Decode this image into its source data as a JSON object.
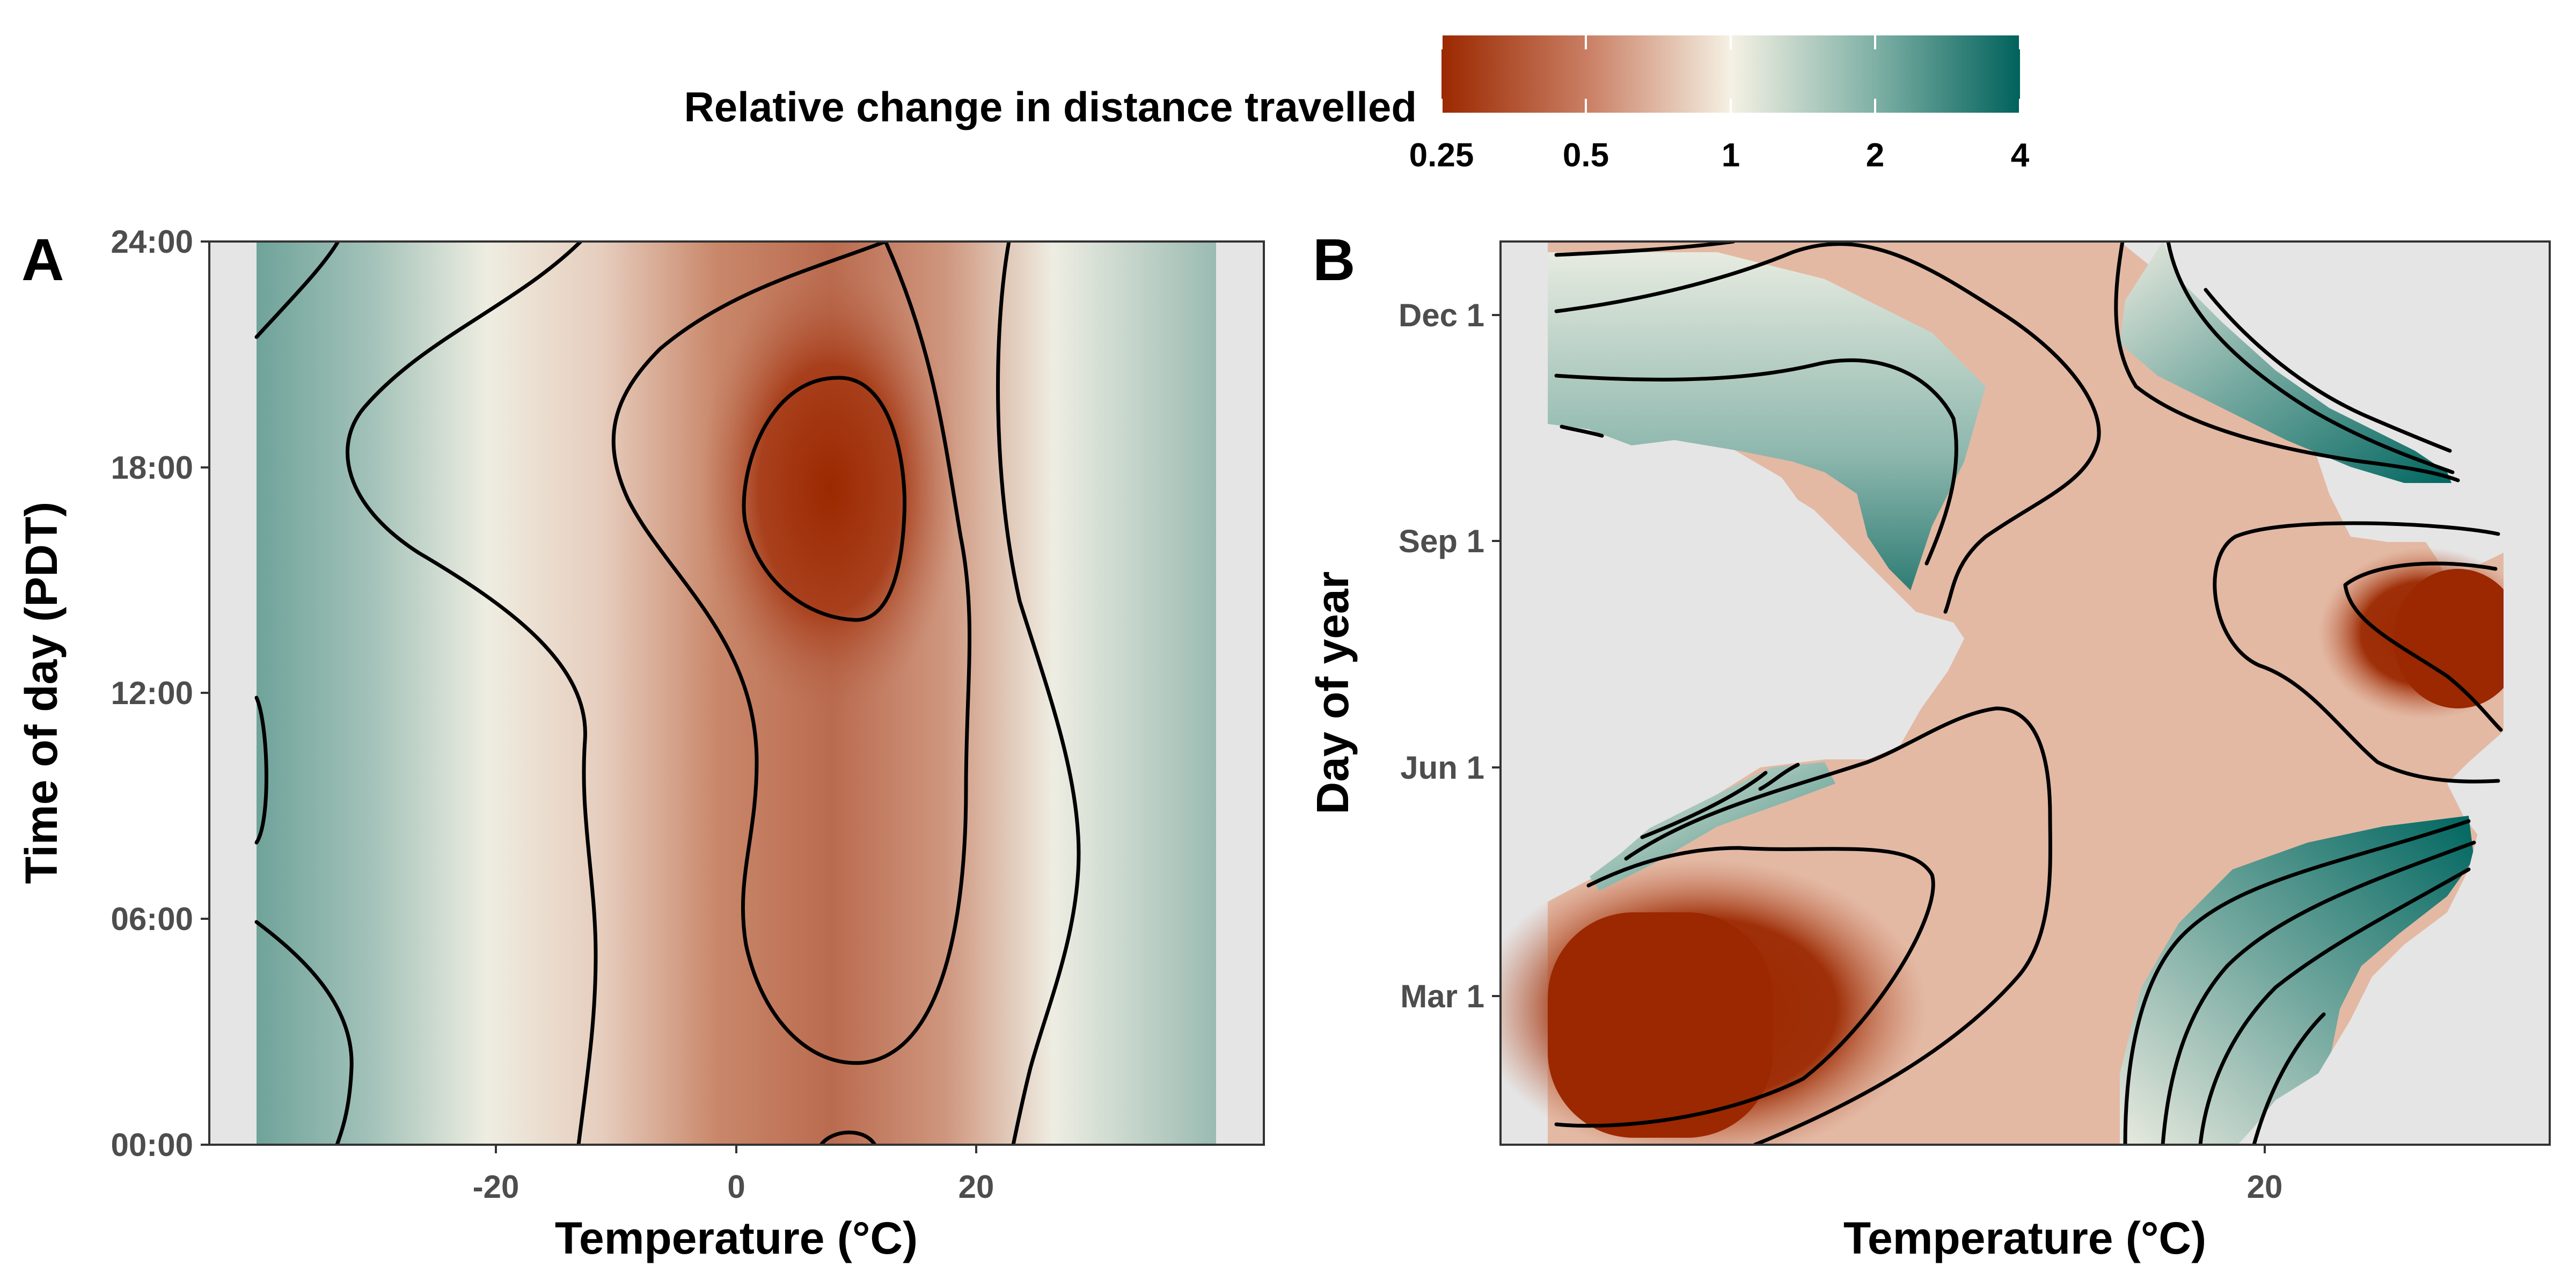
{
  "legend": {
    "title": "Relative change in distance travelled",
    "labels": [
      "0.25",
      "0.5",
      "1",
      "2",
      "4"
    ],
    "values": [
      0.25,
      0.5,
      1,
      2,
      4
    ],
    "scale": "log2",
    "colors": {
      "low": "#9b2800",
      "mid": "#f5f1e4",
      "high": "#00625c",
      "na": "#e5e5e5"
    }
  },
  "panels": [
    {
      "tag": "A",
      "xlabel": "Temperature (°C)",
      "ylabel": "Time of day (PDT)",
      "xticks": [
        "-20",
        "0",
        "20"
      ],
      "yticks": [
        "00:00",
        "06:00",
        "12:00",
        "18:00",
        "24:00"
      ]
    },
    {
      "tag": "B",
      "xlabel": "Temperature (°C)",
      "ylabel": "Day of year",
      "xticks": [
        "20"
      ],
      "yticks": [
        "Mar 1",
        "Jun 1",
        "Sep 1",
        "Dec 1"
      ]
    }
  ],
  "chart_data": [
    {
      "type": "heatmap",
      "title": "",
      "xlabel": "Temperature (°C)",
      "ylabel": "Time of day (PDT)",
      "xlim": [
        -44,
        44
      ],
      "ylim": [
        "00:00",
        "24:00"
      ],
      "data_range_x": [
        -40,
        40
      ],
      "color_scale": {
        "type": "log2",
        "limits": [
          0.25,
          4
        ],
        "low": "#9b2800",
        "mid": "#f5f1e4",
        "high": "#00625c"
      },
      "contours": true,
      "peak_decrease": {
        "temperature": 8,
        "time": "17:30",
        "value": 0.3
      },
      "approx_values_by_temperature": {
        "x": [
          -40,
          -30,
          -20,
          -10,
          0,
          10,
          20,
          30,
          40
        ],
        "value": [
          2.0,
          1.5,
          1.1,
          0.9,
          0.6,
          0.45,
          0.6,
          1.3,
          1.6
        ]
      }
    },
    {
      "type": "heatmap",
      "title": "",
      "xlabel": "Temperature (°C)",
      "ylabel": "Day of year",
      "xlim": [
        -44,
        44
      ],
      "ylim": [
        "Jan 1",
        "Dec 31"
      ],
      "data_range_x": [
        -40,
        40
      ],
      "color_scale": {
        "type": "log2",
        "limits": [
          0.25,
          4
        ],
        "low": "#9b2800",
        "mid": "#f5f1e4",
        "high": "#00625c"
      },
      "contours": true,
      "regions": [
        {
          "season": "winter (Jan–Apr)",
          "temperature": "cold (-40 to -15)",
          "value": 0.25
        },
        {
          "season": "late Jul–Aug",
          "temperature": "hot (30 to 40)",
          "value": 0.25
        },
        {
          "season": "Sep–Dec",
          "temperature": "cold (-40 to -10)",
          "value": 2.5
        },
        {
          "season": "Oct–Dec",
          "temperature": "warm (12 to 35)",
          "value": 4
        },
        {
          "season": "Jan–May",
          "temperature": "warm (12 to 35)",
          "value": 4
        }
      ]
    }
  ]
}
